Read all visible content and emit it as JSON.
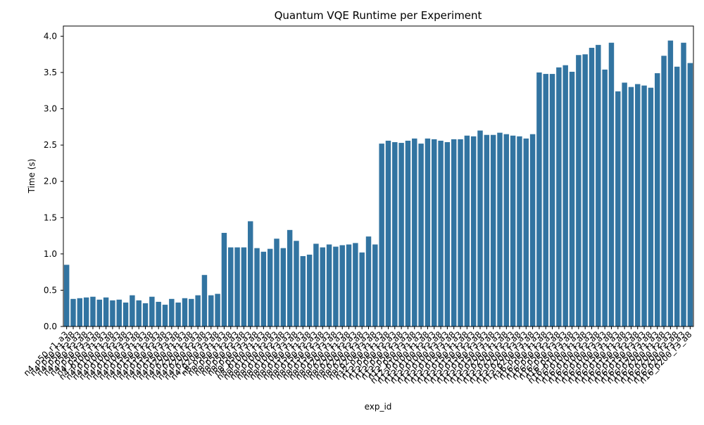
{
  "chart_data": {
    "type": "bar",
    "title": "Quantum VQE Runtime per Experiment",
    "x_label": "exp_id",
    "y_label": "Time (s)",
    "categories": [
      "n4_p50_r1_a3",
      "n4_p50_r1_a8",
      "n4_p50_r2_a3",
      "n4_p50_r2_a8",
      "n4_p50_r3_a3",
      "n4_p50_r3_a8",
      "n4_p100_r1_a3",
      "n4_p100_r1_a8",
      "n4_p100_r2_a3",
      "n4_p100_r2_a8",
      "n4_p100_r3_a3",
      "n4_p100_r3_a8",
      "n4_p150_r1_a3",
      "n4_p150_r1_a8",
      "n4_p150_r2_a3",
      "n4_p150_r2_a8",
      "n4_p150_r3_a3",
      "n4_p150_r3_a8",
      "n4_p200_r1_a3",
      "n4_p200_r1_a8",
      "n4_p200_r2_a3",
      "n4_p200_r2_a8",
      "n4_p200_r3_a3",
      "n4_p200_r3_a8",
      "n8_p50_r1_a3",
      "n8_p50_r1_a8",
      "n8_p50_r2_a3",
      "n8_p50_r2_a8",
      "n8_p50_r3_a3",
      "n8_p50_r3_a8",
      "n8_p100_r1_a3",
      "n8_p100_r1_a8",
      "n8_p100_r2_a3",
      "n8_p100_r2_a8",
      "n8_p100_r3_a3",
      "n8_p100_r3_a8",
      "n8_p150_r1_a3",
      "n8_p150_r1_a8",
      "n8_p150_r2_a3",
      "n8_p150_r2_a8",
      "n8_p150_r3_a3",
      "n8_p150_r3_a8",
      "n8_p200_r1_a3",
      "n8_p200_r1_a8",
      "n8_p200_r2_a3",
      "n8_p200_r2_a8",
      "n8_p200_r3_a3",
      "n8_p200_r3_a8",
      "n12_p50_r1_a3",
      "n12_p50_r1_a8",
      "n12_p50_r2_a3",
      "n12_p50_r2_a8",
      "n12_p50_r3_a3",
      "n12_p50_r3_a8",
      "n12_p100_r1_a3",
      "n12_p100_r1_a8",
      "n12_p100_r2_a3",
      "n12_p100_r2_a8",
      "n12_p100_r3_a3",
      "n12_p100_r3_a8",
      "n12_p150_r1_a3",
      "n12_p150_r1_a8",
      "n12_p150_r2_a3",
      "n12_p150_r2_a8",
      "n12_p150_r3_a3",
      "n12_p150_r3_a8",
      "n12_p200_r1_a3",
      "n12_p200_r1_a8",
      "n12_p200_r2_a3",
      "n12_p200_r2_a8",
      "n12_p200_r3_a3",
      "n12_p200_r3_a8",
      "n16_p50_r1_a3",
      "n16_p50_r1_a8",
      "n16_p50_r2_a3",
      "n16_p50_r2_a8",
      "n16_p50_r3_a3",
      "n16_p50_r3_a8",
      "n16_p100_r1_a3",
      "n16_p100_r1_a8",
      "n16_p100_r2_a3",
      "n16_p100_r2_a8",
      "n16_p100_r3_a3",
      "n16_p100_r3_a8",
      "n16_p150_r1_a3",
      "n16_p150_r1_a8",
      "n16_p150_r2_a3",
      "n16_p150_r2_a8",
      "n16_p150_r3_a3",
      "n16_p150_r3_a8",
      "n16_p200_r1_a3",
      "n16_p200_r1_a8",
      "n16_p200_r2_a3",
      "n16_p200_r2_a8",
      "n16_p200_r3_a3",
      "n16_p200_r3_a8"
    ],
    "values": [
      0.85,
      0.38,
      0.39,
      0.4,
      0.41,
      0.37,
      0.4,
      0.36,
      0.37,
      0.33,
      0.43,
      0.36,
      0.32,
      0.41,
      0.34,
      0.3,
      0.38,
      0.33,
      0.39,
      0.38,
      0.43,
      0.71,
      0.43,
      0.45,
      1.29,
      1.09,
      1.09,
      1.09,
      1.45,
      1.08,
      1.03,
      1.07,
      1.21,
      1.08,
      1.33,
      1.18,
      0.97,
      0.99,
      1.14,
      1.09,
      1.13,
      1.1,
      1.12,
      1.13,
      1.15,
      1.02,
      1.24,
      1.13,
      2.52,
      2.56,
      2.54,
      2.53,
      2.56,
      2.59,
      2.52,
      2.59,
      2.58,
      2.56,
      2.54,
      2.58,
      2.58,
      2.63,
      2.62,
      2.7,
      2.64,
      2.64,
      2.67,
      2.65,
      2.63,
      2.62,
      2.59,
      2.65,
      3.5,
      3.48,
      3.48,
      3.57,
      3.6,
      3.51,
      3.74,
      3.75,
      3.84,
      3.88,
      3.54,
      3.91,
      3.24,
      3.36,
      3.3,
      3.34,
      3.32,
      3.29,
      3.49,
      3.73,
      3.94,
      3.58,
      3.91,
      3.63
    ],
    "color": "#3274a1",
    "ylim": [
      0,
      4.14
    ],
    "yticks": [
      {
        "value": 0,
        "label": "0.0"
      },
      {
        "value": 0.5,
        "label": "0.5"
      },
      {
        "value": 1,
        "label": "1.0"
      },
      {
        "value": 1.5,
        "label": "1.5"
      },
      {
        "value": 2,
        "label": "2.0"
      },
      {
        "value": 2.5,
        "label": "2.5"
      },
      {
        "value": 3,
        "label": "3.0"
      },
      {
        "value": 3.5,
        "label": "3.5"
      },
      {
        "value": 4,
        "label": "4.0"
      }
    ],
    "grid": false
  }
}
